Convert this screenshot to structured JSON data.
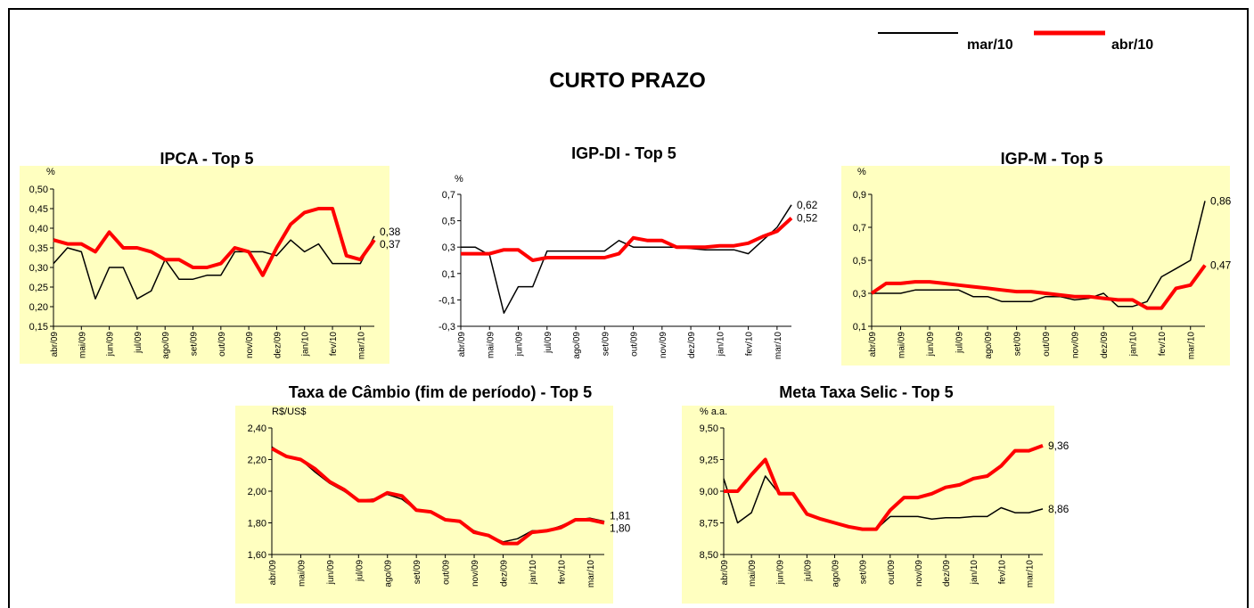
{
  "title": "CURTO PRAZO",
  "legend": [
    {
      "name": "mar/10",
      "color": "#000000"
    },
    {
      "name": "abr/10",
      "color": "#ff0000"
    }
  ],
  "chart_data": [
    {
      "type": "line",
      "title": "IPCA - Top 5",
      "y_unit": "%",
      "background": "#ffffc0",
      "categories": [
        "abr/09",
        null,
        "mai/09",
        null,
        "jun/09",
        null,
        "jul/09",
        null,
        "ago/09",
        null,
        "set/09",
        null,
        "out/09",
        null,
        "nov/09",
        null,
        "dez/09",
        null,
        "jan/10",
        null,
        "fev/10",
        null,
        "mar/10",
        null
      ],
      "ylim": [
        0.15,
        0.5
      ],
      "yticks": [
        {
          "value": 0.15,
          "label": "0,15"
        },
        {
          "value": 0.2,
          "label": "0,20"
        },
        {
          "value": 0.25,
          "label": "0,25"
        },
        {
          "value": 0.3,
          "label": "0,30"
        },
        {
          "value": 0.35,
          "label": "0,35"
        },
        {
          "value": 0.4,
          "label": "0,40"
        },
        {
          "value": 0.45,
          "label": "0,45"
        },
        {
          "value": 0.5,
          "label": "0,50"
        }
      ],
      "series": [
        {
          "color": "#000000",
          "values": [
            0.31,
            0.35,
            0.34,
            0.22,
            0.3,
            0.3,
            0.22,
            0.24,
            0.32,
            0.27,
            0.27,
            0.28,
            0.28,
            0.34,
            0.34,
            0.34,
            0.33,
            0.37,
            0.34,
            0.36,
            0.31,
            0.31,
            0.31,
            0.38
          ],
          "value_labels": [
            null,
            null,
            null,
            null,
            null,
            null,
            null,
            null,
            null,
            null,
            null,
            null,
            null,
            null,
            null,
            null,
            null,
            null,
            null,
            null,
            null,
            null,
            null,
            "0,38"
          ]
        },
        {
          "color": "#ff0000",
          "values": [
            0.37,
            0.36,
            0.36,
            0.34,
            0.39,
            0.35,
            0.35,
            0.34,
            0.32,
            0.32,
            0.3,
            0.3,
            0.31,
            0.35,
            0.34,
            0.28,
            0.35,
            0.41,
            0.44,
            0.45,
            0.45,
            0.33,
            0.32,
            0.37
          ],
          "value_labels": [
            null,
            null,
            null,
            null,
            null,
            null,
            null,
            null,
            null,
            null,
            null,
            null,
            null,
            null,
            null,
            null,
            null,
            null,
            null,
            null,
            null,
            null,
            null,
            "0,37"
          ]
        }
      ]
    },
    {
      "type": "line",
      "title": "IGP-DI - Top 5",
      "y_unit": "%",
      "background": null,
      "categories": [
        "abr/09",
        null,
        "mai/09",
        null,
        "jun/09",
        null,
        "jul/09",
        null,
        "ago/09",
        null,
        "set/09",
        null,
        "out/09",
        null,
        "nov/09",
        null,
        "dez/09",
        null,
        "jan/10",
        null,
        "fev/10",
        null,
        "mar/10",
        null
      ],
      "ylim": [
        -0.3,
        0.7
      ],
      "yticks": [
        {
          "value": -0.3,
          "label": "-0,3"
        },
        {
          "value": -0.1,
          "label": "-0,1"
        },
        {
          "value": 0.1,
          "label": "0,1"
        },
        {
          "value": 0.3,
          "label": "0,3"
        },
        {
          "value": 0.5,
          "label": "0,5"
        },
        {
          "value": 0.7,
          "label": "0,7"
        }
      ],
      "series": [
        {
          "color": "#000000",
          "values": [
            0.3,
            0.3,
            0.24,
            -0.2,
            0.0,
            0.0,
            0.27,
            0.27,
            0.27,
            0.27,
            0.27,
            0.35,
            0.3,
            0.3,
            0.3,
            0.3,
            0.29,
            0.28,
            0.28,
            0.28,
            0.25,
            0.35,
            0.45,
            0.62
          ],
          "value_labels": [
            null,
            null,
            null,
            null,
            null,
            null,
            null,
            null,
            null,
            null,
            null,
            null,
            null,
            null,
            null,
            null,
            null,
            null,
            null,
            null,
            null,
            null,
            null,
            "0,62"
          ]
        },
        {
          "color": "#ff0000",
          "values": [
            0.25,
            0.25,
            0.25,
            0.28,
            0.28,
            0.2,
            0.22,
            0.22,
            0.22,
            0.22,
            0.22,
            0.25,
            0.37,
            0.35,
            0.35,
            0.3,
            0.3,
            0.3,
            0.31,
            0.31,
            0.33,
            0.38,
            0.42,
            0.52
          ],
          "value_labels": [
            null,
            null,
            null,
            null,
            null,
            null,
            null,
            null,
            null,
            null,
            null,
            null,
            null,
            null,
            null,
            null,
            null,
            null,
            null,
            null,
            null,
            null,
            null,
            "0,52"
          ]
        }
      ]
    },
    {
      "type": "line",
      "title": "IGP-M - Top 5",
      "y_unit": "%",
      "background": "#ffffc0",
      "categories": [
        "abr/09",
        null,
        "mai/09",
        null,
        "jun/09",
        null,
        "jul/09",
        null,
        "ago/09",
        null,
        "set/09",
        null,
        "out/09",
        null,
        "nov/09",
        null,
        "dez/09",
        null,
        "jan/10",
        null,
        "fev/10",
        null,
        "mar/10",
        null
      ],
      "ylim": [
        0.1,
        0.9
      ],
      "yticks": [
        {
          "value": 0.1,
          "label": "0,1"
        },
        {
          "value": 0.3,
          "label": "0,3"
        },
        {
          "value": 0.5,
          "label": "0,5"
        },
        {
          "value": 0.7,
          "label": "0,7"
        },
        {
          "value": 0.9,
          "label": "0,9"
        }
      ],
      "series": [
        {
          "color": "#000000",
          "values": [
            0.3,
            0.3,
            0.3,
            0.32,
            0.32,
            0.32,
            0.32,
            0.28,
            0.28,
            0.25,
            0.25,
            0.25,
            0.28,
            0.28,
            0.26,
            0.27,
            0.3,
            0.22,
            0.22,
            0.25,
            0.4,
            0.45,
            0.5,
            0.86
          ],
          "value_labels": [
            null,
            null,
            null,
            null,
            null,
            null,
            null,
            null,
            null,
            null,
            null,
            null,
            null,
            null,
            null,
            null,
            null,
            null,
            null,
            null,
            null,
            null,
            null,
            "0,86"
          ]
        },
        {
          "color": "#ff0000",
          "values": [
            0.3,
            0.36,
            0.36,
            0.37,
            0.37,
            0.36,
            0.35,
            0.34,
            0.33,
            0.32,
            0.31,
            0.31,
            0.3,
            0.29,
            0.28,
            0.28,
            0.27,
            0.26,
            0.26,
            0.21,
            0.21,
            0.33,
            0.35,
            0.47
          ],
          "value_labels": [
            null,
            null,
            null,
            null,
            null,
            null,
            null,
            null,
            null,
            null,
            null,
            null,
            null,
            null,
            null,
            null,
            null,
            null,
            null,
            null,
            null,
            null,
            null,
            "0,47"
          ]
        }
      ]
    },
    {
      "type": "line",
      "title": "Taxa de Câmbio (fim de período) - Top 5",
      "y_unit": "R$/US$",
      "background": "#ffffc0",
      "categories": [
        "abr/09",
        null,
        "mai/09",
        null,
        "jun/09",
        null,
        "jul/09",
        null,
        "ago/09",
        null,
        "set/09",
        null,
        "out/09",
        null,
        "nov/09",
        null,
        "dez/09",
        null,
        "jan/10",
        null,
        "fev/10",
        null,
        "mar/10",
        null
      ],
      "ylim": [
        1.6,
        2.4
      ],
      "yticks": [
        {
          "value": 1.6,
          "label": "1,60"
        },
        {
          "value": 1.8,
          "label": "1,80"
        },
        {
          "value": 2.0,
          "label": "2,00"
        },
        {
          "value": 2.2,
          "label": "2,20"
        },
        {
          "value": 2.4,
          "label": "2,40"
        }
      ],
      "series": [
        {
          "color": "#000000",
          "values": [
            2.28,
            2.22,
            2.2,
            2.12,
            2.05,
            2.0,
            1.94,
            1.95,
            1.98,
            1.95,
            1.88,
            1.87,
            1.82,
            1.81,
            1.75,
            1.72,
            1.68,
            1.7,
            1.75,
            1.75,
            1.78,
            1.82,
            1.83,
            1.81
          ],
          "value_labels": [
            null,
            null,
            null,
            null,
            null,
            null,
            null,
            null,
            null,
            null,
            null,
            null,
            null,
            null,
            null,
            null,
            null,
            null,
            null,
            null,
            null,
            null,
            null,
            "1,81"
          ]
        },
        {
          "color": "#ff0000",
          "values": [
            2.27,
            2.22,
            2.2,
            2.14,
            2.06,
            2.01,
            1.94,
            1.94,
            1.99,
            1.97,
            1.88,
            1.87,
            1.82,
            1.81,
            1.74,
            1.72,
            1.67,
            1.67,
            1.74,
            1.75,
            1.77,
            1.82,
            1.82,
            1.8
          ],
          "value_labels": [
            null,
            null,
            null,
            null,
            null,
            null,
            null,
            null,
            null,
            null,
            null,
            null,
            null,
            null,
            null,
            null,
            null,
            null,
            null,
            null,
            null,
            null,
            null,
            "1,80"
          ]
        }
      ]
    },
    {
      "type": "line",
      "title": "Meta Taxa Selic - Top 5",
      "y_unit": "% a.a.",
      "background": "#ffffc0",
      "categories": [
        "abr/09",
        null,
        "mai/09",
        null,
        "jun/09",
        null,
        "jul/09",
        null,
        "ago/09",
        null,
        "set/09",
        null,
        "out/09",
        null,
        "nov/09",
        null,
        "dez/09",
        null,
        "jan/10",
        null,
        "fev/10",
        null,
        "mar/10",
        null
      ],
      "ylim": [
        8.5,
        9.5
      ],
      "yticks": [
        {
          "value": 8.5,
          "label": "8,50"
        },
        {
          "value": 8.75,
          "label": "8,75"
        },
        {
          "value": 9.0,
          "label": "9,00"
        },
        {
          "value": 9.25,
          "label": "9,25"
        },
        {
          "value": 9.5,
          "label": "9,50"
        }
      ],
      "series": [
        {
          "color": "#000000",
          "values": [
            9.1,
            8.75,
            8.83,
            9.12,
            8.98,
            8.98,
            8.82,
            8.78,
            8.75,
            8.72,
            8.7,
            8.7,
            8.8,
            8.8,
            8.8,
            8.78,
            8.79,
            8.79,
            8.8,
            8.8,
            8.87,
            8.83,
            8.83,
            8.86
          ],
          "value_labels": [
            null,
            null,
            null,
            null,
            null,
            null,
            null,
            null,
            null,
            null,
            null,
            null,
            null,
            null,
            null,
            null,
            null,
            null,
            null,
            null,
            null,
            null,
            null,
            "8,86"
          ]
        },
        {
          "color": "#ff0000",
          "values": [
            9.0,
            9.0,
            9.13,
            9.25,
            8.98,
            8.98,
            8.82,
            8.78,
            8.75,
            8.72,
            8.7,
            8.7,
            8.85,
            8.95,
            8.95,
            8.98,
            9.03,
            9.05,
            9.1,
            9.12,
            9.2,
            9.32,
            9.32,
            9.36
          ],
          "value_labels": [
            null,
            null,
            null,
            null,
            null,
            null,
            null,
            null,
            null,
            null,
            null,
            null,
            null,
            null,
            null,
            null,
            null,
            null,
            null,
            null,
            null,
            null,
            null,
            "9,36"
          ]
        }
      ]
    }
  ]
}
